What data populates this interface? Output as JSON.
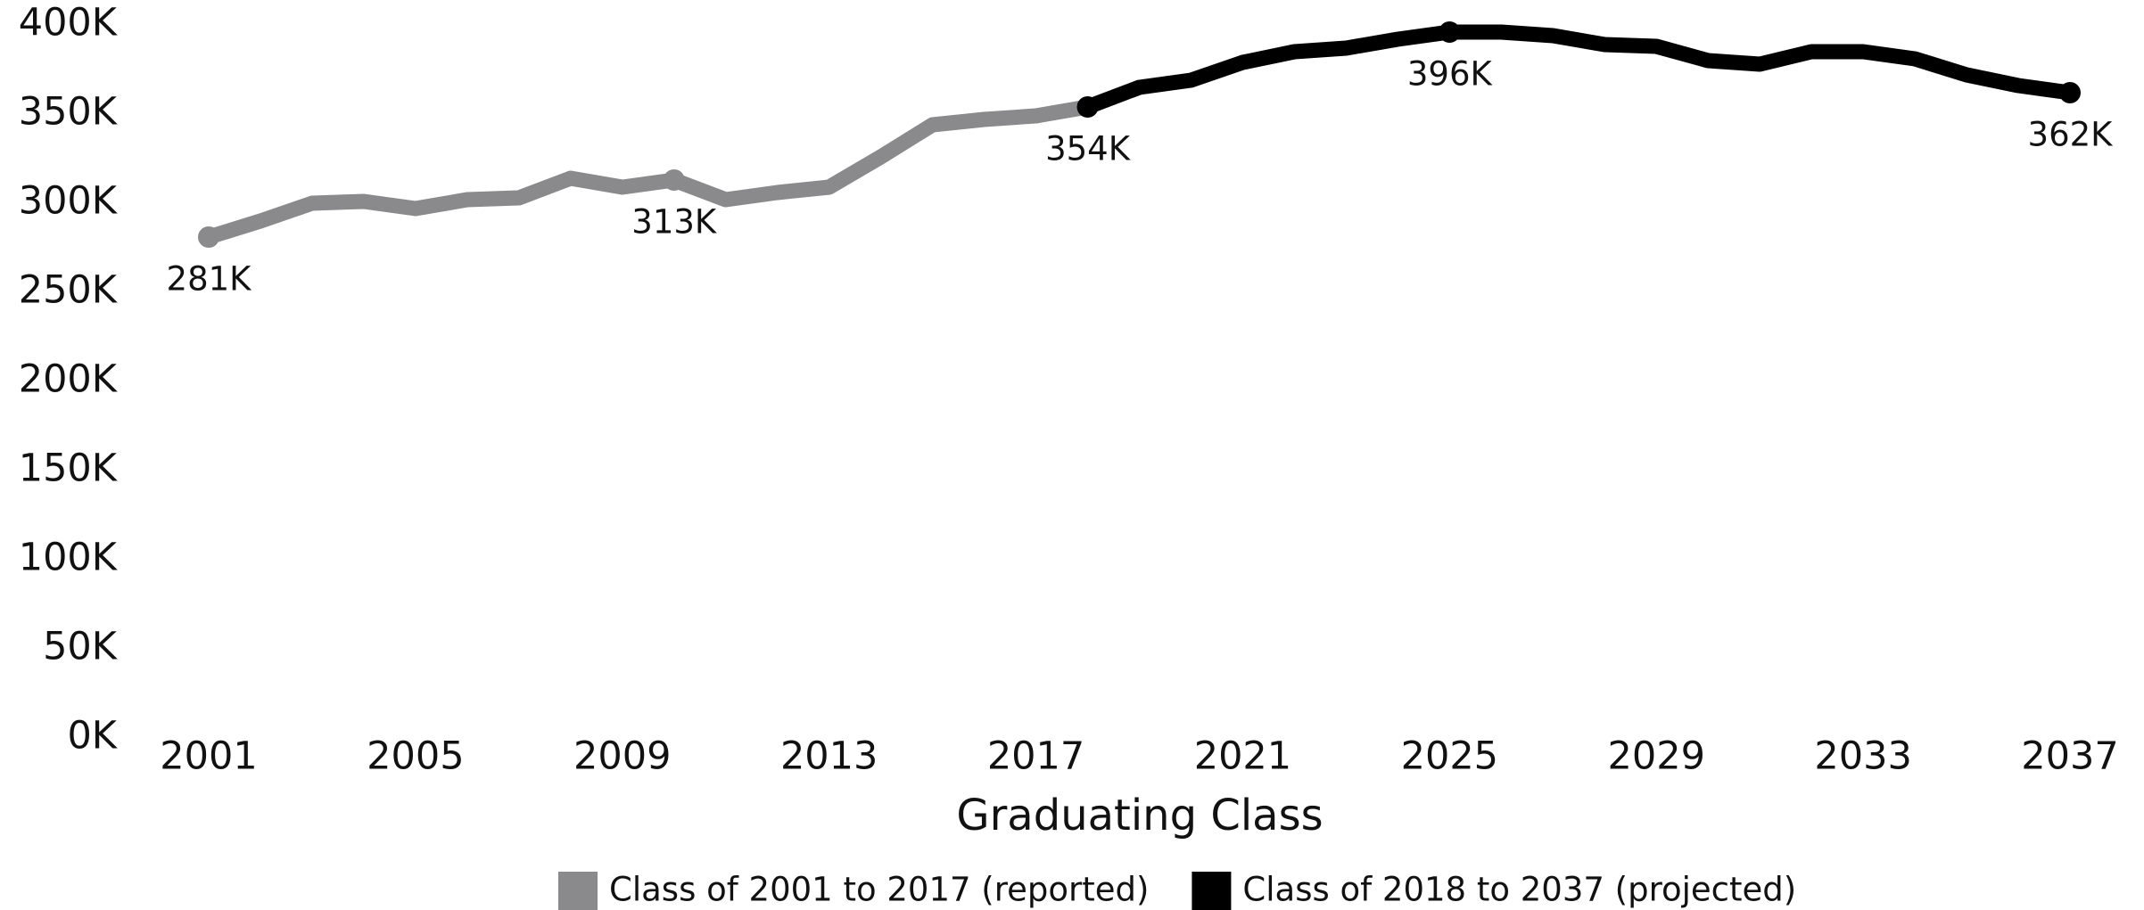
{
  "chart_data": {
    "type": "line",
    "x_label": "Graduating Class",
    "xlim": [
      2001,
      2037
    ],
    "xticks": [
      2001,
      2005,
      2009,
      2013,
      2017,
      2021,
      2025,
      2029,
      2033,
      2037
    ],
    "ylim": [
      0,
      400
    ],
    "yticks": [
      {
        "value": 0,
        "label": "0K"
      },
      {
        "value": 50,
        "label": "50K"
      },
      {
        "value": 100,
        "label": "100K"
      },
      {
        "value": 150,
        "label": "150K"
      },
      {
        "value": 200,
        "label": "200K"
      },
      {
        "value": 250,
        "label": "250K"
      },
      {
        "value": 300,
        "label": "300K"
      },
      {
        "value": 350,
        "label": "350K"
      },
      {
        "value": 400,
        "label": "400K"
      }
    ],
    "legend": "bottom",
    "series": [
      {
        "name": "Class of 2001 to 2017 (reported)",
        "color": "#8a8a8c",
        "x": [
          2001,
          2002,
          2003,
          2004,
          2005,
          2006,
          2007,
          2008,
          2009,
          2010,
          2011,
          2012,
          2013,
          2014,
          2015,
          2016,
          2017
        ],
        "values": [
          281,
          290,
          300,
          301,
          297,
          302,
          303,
          314,
          309,
          313,
          302,
          306,
          309,
          326,
          344,
          347,
          349
        ],
        "value_labels": [
          "281K",
          null,
          null,
          null,
          null,
          null,
          null,
          null,
          null,
          "313K",
          null,
          null,
          null,
          null,
          null,
          null,
          null
        ]
      },
      {
        "name": "Class of 2018 to 2037 (projected)",
        "color": "#000000",
        "x": [
          2018,
          2019,
          2020,
          2021,
          2022,
          2023,
          2024,
          2025,
          2026,
          2027,
          2028,
          2029,
          2030,
          2031,
          2032,
          2033,
          2034,
          2035,
          2036,
          2037
        ],
        "values": [
          354,
          365,
          369,
          379,
          385,
          387,
          392,
          396,
          396,
          394,
          389,
          388,
          380,
          378,
          385,
          385,
          381,
          372,
          366,
          362
        ],
        "value_labels": [
          "354K",
          null,
          null,
          null,
          null,
          null,
          null,
          "396K",
          null,
          null,
          null,
          null,
          null,
          null,
          null,
          null,
          null,
          null,
          null,
          "362K"
        ]
      }
    ]
  }
}
